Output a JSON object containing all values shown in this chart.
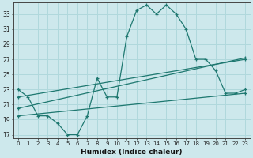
{
  "title": "",
  "xlabel": "Humidex (Indice chaleur)",
  "background_color": "#cde8ec",
  "line_color": "#1e7870",
  "grid_color": "#b0d8dc",
  "xlim": [
    -0.5,
    23.5
  ],
  "ylim": [
    16.5,
    34.5
  ],
  "yticks": [
    17,
    19,
    21,
    23,
    25,
    27,
    29,
    31,
    33
  ],
  "xticks": [
    0,
    1,
    2,
    3,
    4,
    5,
    6,
    7,
    8,
    9,
    10,
    11,
    12,
    13,
    14,
    15,
    16,
    17,
    18,
    19,
    20,
    21,
    22,
    23
  ],
  "line1_x": [
    0,
    1,
    2,
    3,
    4,
    5,
    6,
    7,
    8,
    9,
    10,
    11,
    12,
    13,
    14,
    15,
    16,
    17,
    18,
    19,
    20,
    21,
    22,
    23
  ],
  "line1_y": [
    23,
    22,
    19.5,
    19.5,
    18.5,
    17,
    17,
    19.5,
    24.5,
    22,
    22,
    30,
    33.5,
    34.2,
    33,
    34.2,
    33,
    31,
    27,
    27,
    25.5,
    22.5,
    22.5,
    23
  ],
  "line2_x": [
    0,
    23
  ],
  "line2_y": [
    19.5,
    22.5
  ],
  "line3_x": [
    0,
    23
  ],
  "line3_y": [
    22.0,
    27.0
  ],
  "line4_x": [
    0,
    23
  ],
  "line4_y": [
    20.5,
    27.2
  ]
}
